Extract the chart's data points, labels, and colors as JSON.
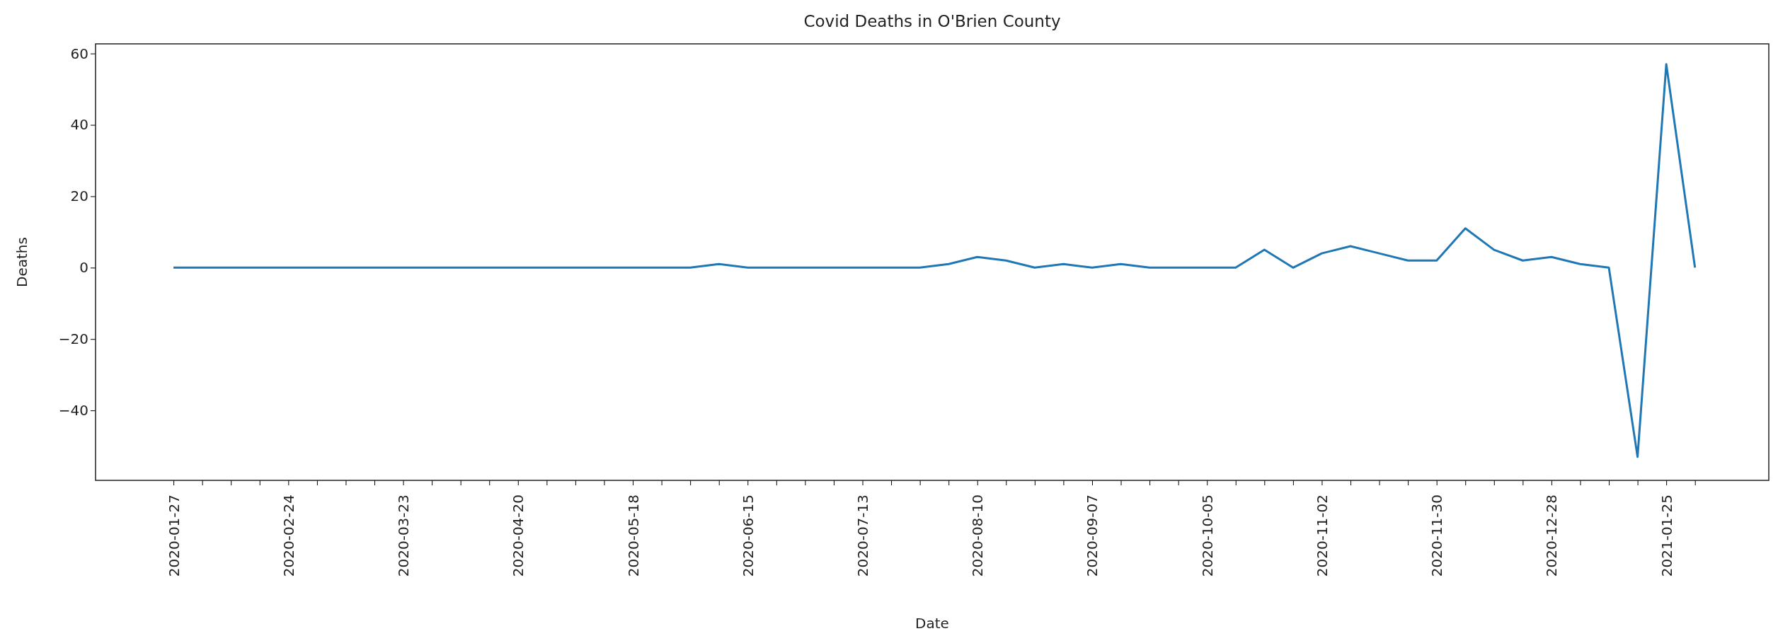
{
  "chart_data": {
    "type": "line",
    "title": "Covid Deaths in O'Brien County",
    "xlabel": "Date",
    "ylabel": "Deaths",
    "x": [
      "2020-01-27",
      "2020-02-03",
      "2020-02-10",
      "2020-02-17",
      "2020-02-24",
      "2020-03-02",
      "2020-03-09",
      "2020-03-16",
      "2020-03-23",
      "2020-03-30",
      "2020-04-06",
      "2020-04-13",
      "2020-04-20",
      "2020-04-27",
      "2020-05-04",
      "2020-05-11",
      "2020-05-18",
      "2020-05-25",
      "2020-06-01",
      "2020-06-08",
      "2020-06-15",
      "2020-06-22",
      "2020-06-29",
      "2020-07-06",
      "2020-07-13",
      "2020-07-20",
      "2020-07-27",
      "2020-08-03",
      "2020-08-10",
      "2020-08-17",
      "2020-08-24",
      "2020-08-31",
      "2020-09-07",
      "2020-09-14",
      "2020-09-21",
      "2020-09-28",
      "2020-10-05",
      "2020-10-12",
      "2020-10-19",
      "2020-10-26",
      "2020-11-02",
      "2020-11-09",
      "2020-11-16",
      "2020-11-23",
      "2020-11-30",
      "2020-12-07",
      "2020-12-14",
      "2020-12-21",
      "2020-12-28",
      "2021-01-04",
      "2021-01-11",
      "2021-01-18",
      "2021-01-25",
      "2021-02-01"
    ],
    "series": [
      {
        "color": "#1f77b4",
        "values": [
          0,
          0,
          0,
          0,
          0,
          0,
          0,
          0,
          0,
          0,
          0,
          0,
          0,
          0,
          0,
          0,
          0,
          0,
          0,
          1,
          0,
          0,
          0,
          0,
          0,
          0,
          0,
          1,
          3,
          2,
          0,
          1,
          0,
          1,
          0,
          0,
          0,
          0,
          5,
          0,
          4,
          6,
          4,
          2,
          2,
          11,
          5,
          2,
          3,
          1,
          0,
          -53,
          57,
          0
        ]
      }
    ],
    "xlim": [
      "2020-01-08",
      "2021-02-19"
    ],
    "xticks": [
      "2020-01-27",
      {
        "value": "2020-02-03",
        "label": null
      },
      {
        "value": "2020-02-10",
        "label": null
      },
      {
        "value": "2020-02-17",
        "label": null
      },
      "2020-02-24",
      {
        "value": "2020-03-02",
        "label": null
      },
      {
        "value": "2020-03-09",
        "label": null
      },
      {
        "value": "2020-03-16",
        "label": null
      },
      "2020-03-23",
      {
        "value": "2020-03-30",
        "label": null
      },
      {
        "value": "2020-04-06",
        "label": null
      },
      {
        "value": "2020-04-13",
        "label": null
      },
      "2020-04-20",
      {
        "value": "2020-04-27",
        "label": null
      },
      {
        "value": "2020-05-04",
        "label": null
      },
      {
        "value": "2020-05-11",
        "label": null
      },
      "2020-05-18",
      {
        "value": "2020-05-25",
        "label": null
      },
      {
        "value": "2020-06-01",
        "label": null
      },
      {
        "value": "2020-06-08",
        "label": null
      },
      "2020-06-15",
      {
        "value": "2020-06-22",
        "label": null
      },
      {
        "value": "2020-06-29",
        "label": null
      },
      {
        "value": "2020-07-06",
        "label": null
      },
      "2020-07-13",
      {
        "value": "2020-07-20",
        "label": null
      },
      {
        "value": "2020-07-27",
        "label": null
      },
      {
        "value": "2020-08-03",
        "label": null
      },
      "2020-08-10",
      {
        "value": "2020-08-17",
        "label": null
      },
      {
        "value": "2020-08-24",
        "label": null
      },
      {
        "value": "2020-08-31",
        "label": null
      },
      "2020-09-07",
      {
        "value": "2020-09-14",
        "label": null
      },
      {
        "value": "2020-09-21",
        "label": null
      },
      {
        "value": "2020-09-28",
        "label": null
      },
      "2020-10-05",
      {
        "value": "2020-10-12",
        "label": null
      },
      {
        "value": "2020-10-19",
        "label": null
      },
      {
        "value": "2020-10-26",
        "label": null
      },
      "2020-11-02",
      {
        "value": "2020-11-09",
        "label": null
      },
      {
        "value": "2020-11-16",
        "label": null
      },
      {
        "value": "2020-11-23",
        "label": null
      },
      "2020-11-30",
      {
        "value": "2020-12-07",
        "label": null
      },
      {
        "value": "2020-12-14",
        "label": null
      },
      {
        "value": "2020-12-21",
        "label": null
      },
      "2020-12-28",
      {
        "value": "2021-01-04",
        "label": null
      },
      {
        "value": "2021-01-11",
        "label": null
      },
      {
        "value": "2021-01-18",
        "label": null
      },
      "2021-01-25",
      {
        "value": "2021-02-01",
        "label": null
      }
    ],
    "ylim": [
      -59.6,
      62.7
    ],
    "yticks": [
      {
        "value": -40,
        "label": "−40"
      },
      {
        "value": -20,
        "label": "−20"
      },
      0,
      20,
      40,
      60
    ],
    "grid": false,
    "line_style": "solid"
  }
}
